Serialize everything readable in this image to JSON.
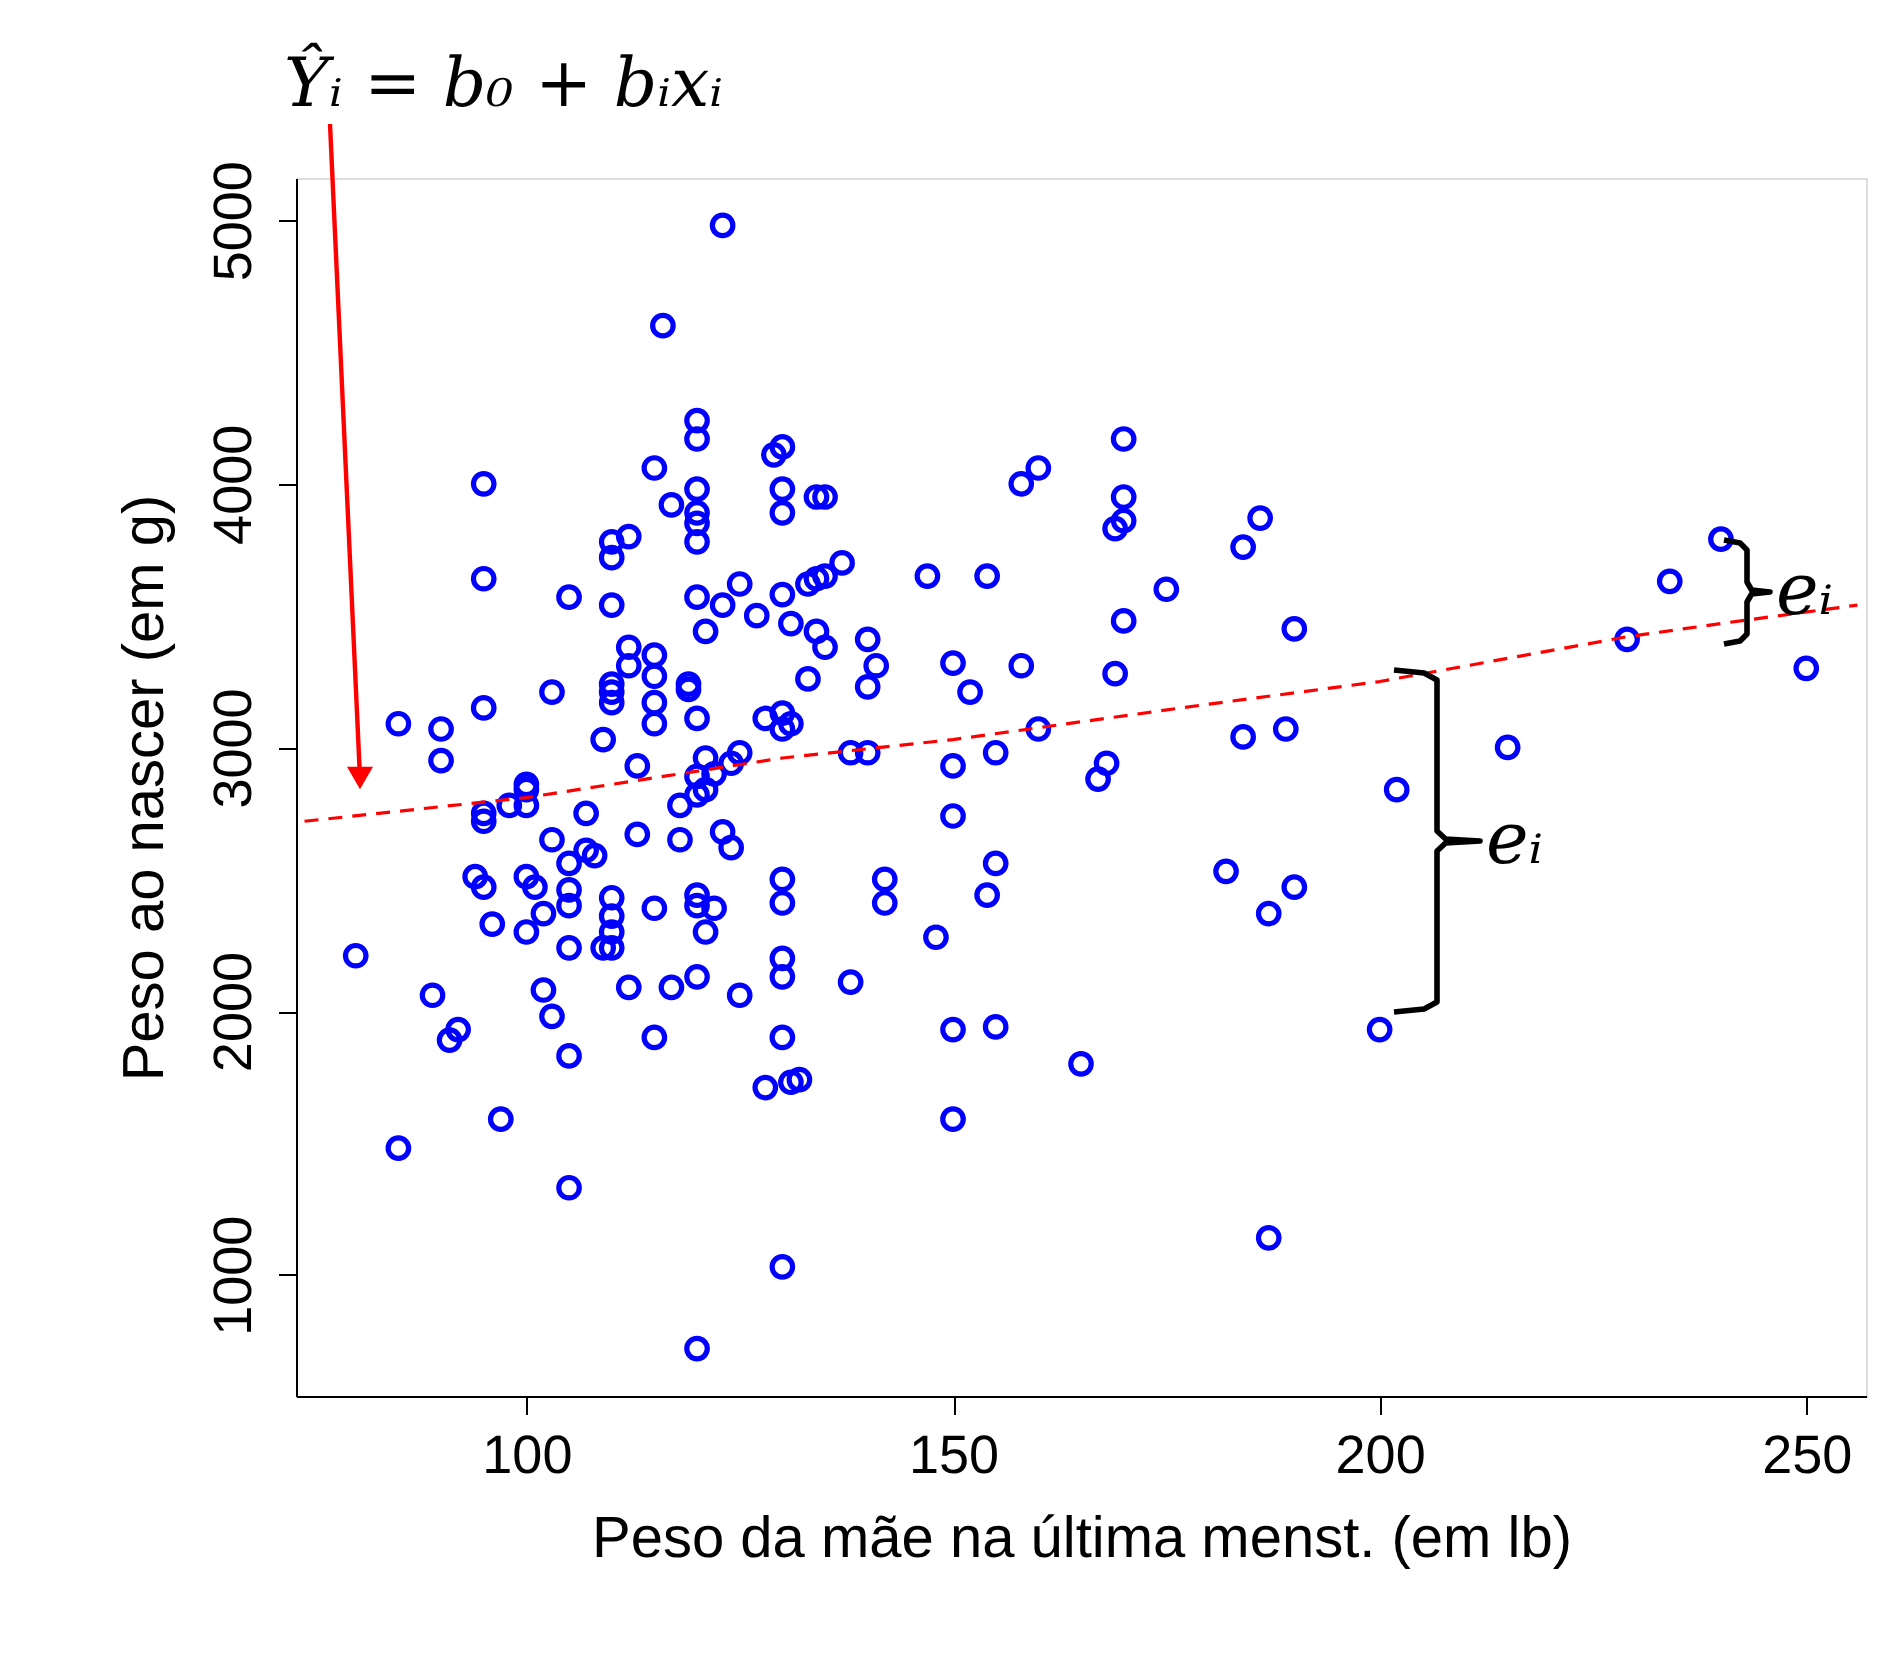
{
  "chart_data": {
    "type": "scatter",
    "xlabel": "Peso da mãe na última menst. (em lb)",
    "ylabel": "Peso ao nascer (em g)",
    "xlim": [
      73,
      257
    ],
    "ylim": [
      540,
      5160
    ],
    "xticks": [
      100,
      150,
      200,
      250
    ],
    "yticks": [
      1000,
      2000,
      3000,
      4000,
      5000
    ],
    "grid": false,
    "marker": "circle",
    "annotations": [
      "Ŷᵢ = b₀ + bᵢxᵢ",
      "eᵢ",
      "eᵢ"
    ],
    "series": [
      {
        "color": "#0000ff",
        "x": [
          123,
          116,
          120,
          120,
          115,
          95,
          120,
          117,
          120,
          120,
          120,
          110,
          110,
          112,
          95,
          105,
          110,
          120,
          123,
          125,
          127,
          121,
          130,
          131,
          130,
          130,
          129,
          130,
          112,
          112,
          115,
          115,
          110,
          110,
          110,
          103,
          119,
          119,
          115,
          115,
          120,
          85,
          90,
          90,
          95,
          109,
          113,
          128,
          130,
          130,
          125,
          121,
          120,
          122,
          124,
          100,
          100,
          100,
          95,
          95,
          98,
          107,
          103,
          113,
          118,
          118,
          120,
          121,
          123,
          124,
          107,
          108,
          105,
          94,
          95,
          100,
          101,
          105,
          105,
          110,
          110,
          110,
          109,
          110,
          115,
          120,
          120,
          122,
          121,
          102,
          96,
          100,
          105,
          130,
          130,
          80,
          89,
          102,
          112,
          117,
          120,
          125,
          130,
          130,
          103,
          91,
          92,
          105,
          115,
          130,
          128,
          131,
          97,
          85,
          105,
          130,
          120,
          170,
          160,
          158,
          170,
          170,
          169,
          186,
          184,
          134,
          135,
          137,
          133,
          134,
          135,
          147,
          154,
          175,
          170,
          190,
          134,
          135,
          140,
          141,
          140,
          133,
          150,
          158,
          152,
          169,
          131,
          138,
          140,
          150,
          155,
          160,
          168,
          167,
          184,
          189,
          150,
          142,
          142,
          155,
          154,
          148,
          138,
          182,
          187,
          190,
          132,
          150,
          155,
          165,
          200,
          150,
          187,
          240,
          234,
          229,
          250,
          215,
          202
        ],
        "values": [
          4980,
          4600,
          4240,
          4170,
          4060,
          4000,
          3980,
          3920,
          3890,
          3850,
          3780,
          3780,
          3720,
          3800,
          3640,
          3570,
          3540,
          3570,
          3540,
          3620,
          3500,
          3440,
          3580,
          3470,
          3980,
          3890,
          4110,
          4140,
          3380,
          3310,
          3350,
          3270,
          3240,
          3210,
          3170,
          3210,
          3240,
          3220,
          3170,
          3090,
          3110,
          3090,
          3070,
          2950,
          3150,
          3030,
          2930,
          3110,
          3130,
          3070,
          2980,
          2960,
          2890,
          2900,
          2940,
          2860,
          2840,
          2780,
          2750,
          2720,
          2780,
          2750,
          2650,
          2670,
          2780,
          2650,
          2820,
          2840,
          2680,
          2620,
          2610,
          2590,
          2560,
          2510,
          2470,
          2510,
          2470,
          2460,
          2400,
          2430,
          2360,
          2300,
          2240,
          2240,
          2390,
          2440,
          2400,
          2390,
          2300,
          2370,
          2330,
          2300,
          2240,
          2500,
          2410,
          2210,
          2060,
          2080,
          2090,
          2090,
          2130,
          2060,
          2200,
          2130,
          1980,
          1890,
          1930,
          1830,
          1900,
          1900,
          1710,
          1730,
          1590,
          1480,
          1330,
          1030,
          720,
          4170,
          4060,
          4000,
          3950,
          3860,
          3830,
          3870,
          3760,
          3950,
          3950,
          3700,
          3620,
          3640,
          3650,
          3650,
          3650,
          3600,
          3480,
          3450,
          3440,
          3380,
          3410,
          3310,
          3230,
          3260,
          3320,
          3310,
          3210,
          3280,
          3090,
          2980,
          2980,
          2930,
          2980,
          3070,
          2940,
          2880,
          3040,
          3070,
          2740,
          2500,
          2410,
          2560,
          2440,
          2280,
          2110,
          2530,
          2370,
          2470,
          1740,
          1930,
          1940,
          1800,
          1930,
          1590,
          1140,
          3790,
          3630,
          3410,
          3300,
          3000,
          2840
        ]
      },
      {
        "type": "line",
        "color": "#ff0000",
        "line_style": "dashed",
        "marker": "none",
        "x": [
          74,
          100,
          130,
          150,
          179,
          200,
          229,
          240,
          256
        ],
        "values": [
          2720,
          2810,
          2960,
          3030,
          3160,
          3250,
          3420,
          3470,
          3540
        ]
      }
    ]
  }
}
